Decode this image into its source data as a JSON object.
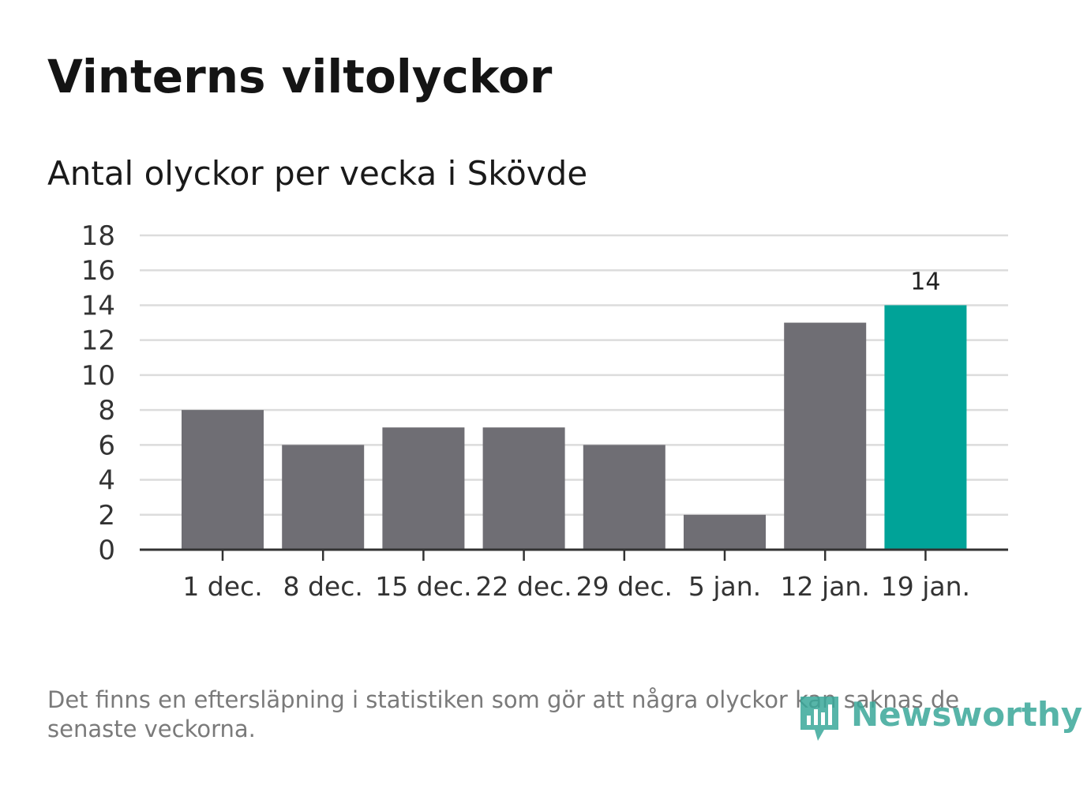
{
  "chart_data": {
    "type": "bar",
    "title": "Vinterns viltolyckor",
    "subtitle": "Antal olyckor per vecka i Skövde",
    "categories": [
      "1 dec.",
      "8 dec.",
      "15 dec.",
      "22 dec.",
      "29 dec.",
      "5 jan.",
      "12 jan.",
      "19 jan."
    ],
    "values": [
      8,
      6,
      7,
      7,
      6,
      2,
      13,
      14
    ],
    "ylim": [
      0,
      18
    ],
    "yticks": [
      0,
      2,
      4,
      6,
      8,
      10,
      12,
      14,
      16,
      18
    ],
    "grid": true,
    "highlight_index": 7,
    "highlight_label": "14",
    "colors": {
      "bar": "#6f6e74",
      "highlight": "#00a398",
      "grid": "#dcdcdc",
      "axis": "#333333"
    }
  },
  "footer": {
    "note": "Det finns en eftersläpning i statistiken som gör att några olyckor kan saknas de senaste veckorna.",
    "brand": "Newsworthy",
    "brand_icon": "bar-chart-icon"
  }
}
